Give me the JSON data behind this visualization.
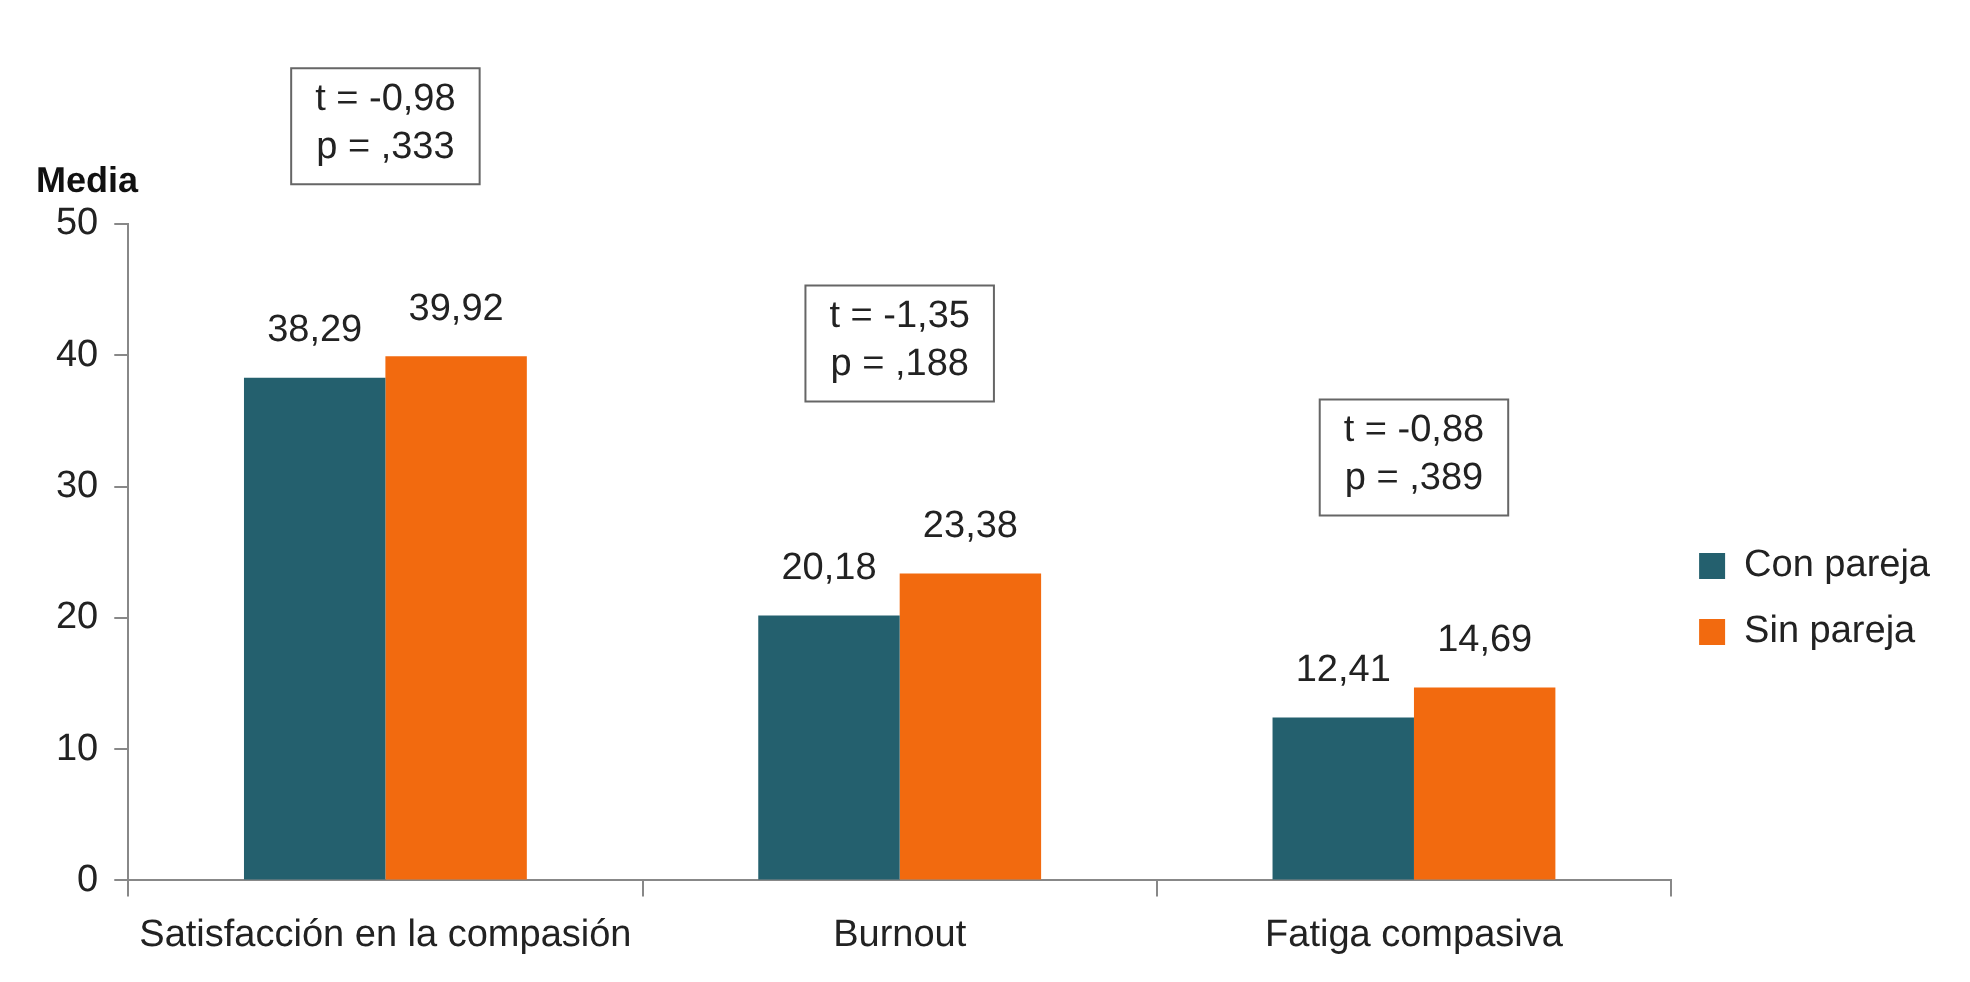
{
  "chart_data": {
    "type": "bar",
    "ylabel": "Media",
    "categories": [
      "Satisfacción en la compasión",
      "Burnout",
      "Fatiga compasiva"
    ],
    "series": [
      {
        "name": "Con pareja",
        "color": "#24606e",
        "values": [
          38.29,
          20.18,
          12.41
        ],
        "value_labels": [
          "38,29",
          "20,18",
          "12,41"
        ]
      },
      {
        "name": "Sin pareja",
        "color": "#f26a0f",
        "values": [
          39.92,
          23.38,
          14.69
        ],
        "value_labels": [
          "39,92",
          "23,38",
          "14,69"
        ]
      }
    ],
    "ylim": [
      0,
      50
    ],
    "yticks": [
      0,
      10,
      20,
      30,
      40,
      50
    ],
    "grid": false,
    "legend": "right",
    "annotations": [
      "t = -0,98\np = ,333",
      "t = -1,35\np = ,188",
      "t = -0,88\np = ,389"
    ]
  }
}
